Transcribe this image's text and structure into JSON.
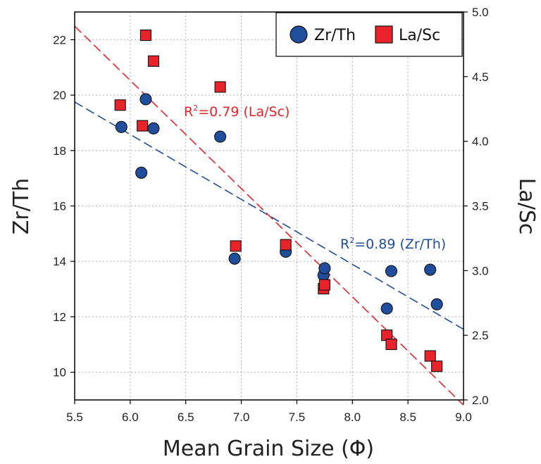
{
  "chart_data": {
    "type": "scatter",
    "xlabel": "Mean Grain Size (Φ)",
    "ylabel_left": "Zr/Th",
    "ylabel_right": "La/Sc",
    "xlim": [
      5.5,
      9.0
    ],
    "ylim_left": [
      9,
      23
    ],
    "ylim_right": [
      2.0,
      5.0
    ],
    "x_ticks": [
      "5.5",
      "6.0",
      "6.5",
      "7.0",
      "7.5",
      "8.0",
      "8.5",
      "9.0"
    ],
    "y_ticks_left": [
      "10",
      "12",
      "14",
      "16",
      "18",
      "20",
      "22"
    ],
    "y_ticks_right": [
      "2.0",
      "2.5",
      "3.0",
      "3.5",
      "4.0",
      "4.5",
      "5.0"
    ],
    "grid": true,
    "legend_position": "top-right",
    "series": [
      {
        "name": "Zr/Th",
        "axis": "left",
        "marker": "circle",
        "color": "#1f4e9c",
        "points": [
          [
            5.92,
            18.85
          ],
          [
            6.1,
            17.2
          ],
          [
            6.14,
            19.85
          ],
          [
            6.21,
            18.8
          ],
          [
            6.81,
            18.5
          ],
          [
            6.94,
            14.1
          ],
          [
            7.4,
            14.35
          ],
          [
            7.74,
            13.5
          ],
          [
            7.75,
            13.75
          ],
          [
            8.31,
            12.3
          ],
          [
            8.35,
            13.65
          ],
          [
            8.7,
            13.7
          ],
          [
            8.76,
            12.45
          ]
        ]
      },
      {
        "name": "La/Sc",
        "axis": "right",
        "marker": "square",
        "color": "#e8232a",
        "points": [
          [
            5.91,
            4.28
          ],
          [
            6.11,
            4.12
          ],
          [
            6.14,
            4.82
          ],
          [
            6.21,
            4.62
          ],
          [
            6.81,
            4.42
          ],
          [
            6.95,
            3.19
          ],
          [
            7.4,
            3.2
          ],
          [
            7.74,
            2.86
          ],
          [
            7.75,
            2.89
          ],
          [
            8.31,
            2.5
          ],
          [
            8.35,
            2.43
          ],
          [
            8.7,
            2.34
          ],
          [
            8.76,
            2.26
          ]
        ]
      }
    ],
    "trendlines": [
      {
        "series": "Zr/Th",
        "axis": "left",
        "color": "#1f4e9c",
        "from": [
          5.5,
          19.75
        ],
        "to": [
          9.0,
          11.55
        ],
        "label": "R²=0.89 (Zr/Th)"
      },
      {
        "series": "La/Sc",
        "axis": "right",
        "color": "#e8232a",
        "from": [
          5.5,
          4.89
        ],
        "to": [
          9.0,
          1.96
        ],
        "label": "R²=0.79 (La/Sc)"
      }
    ]
  }
}
